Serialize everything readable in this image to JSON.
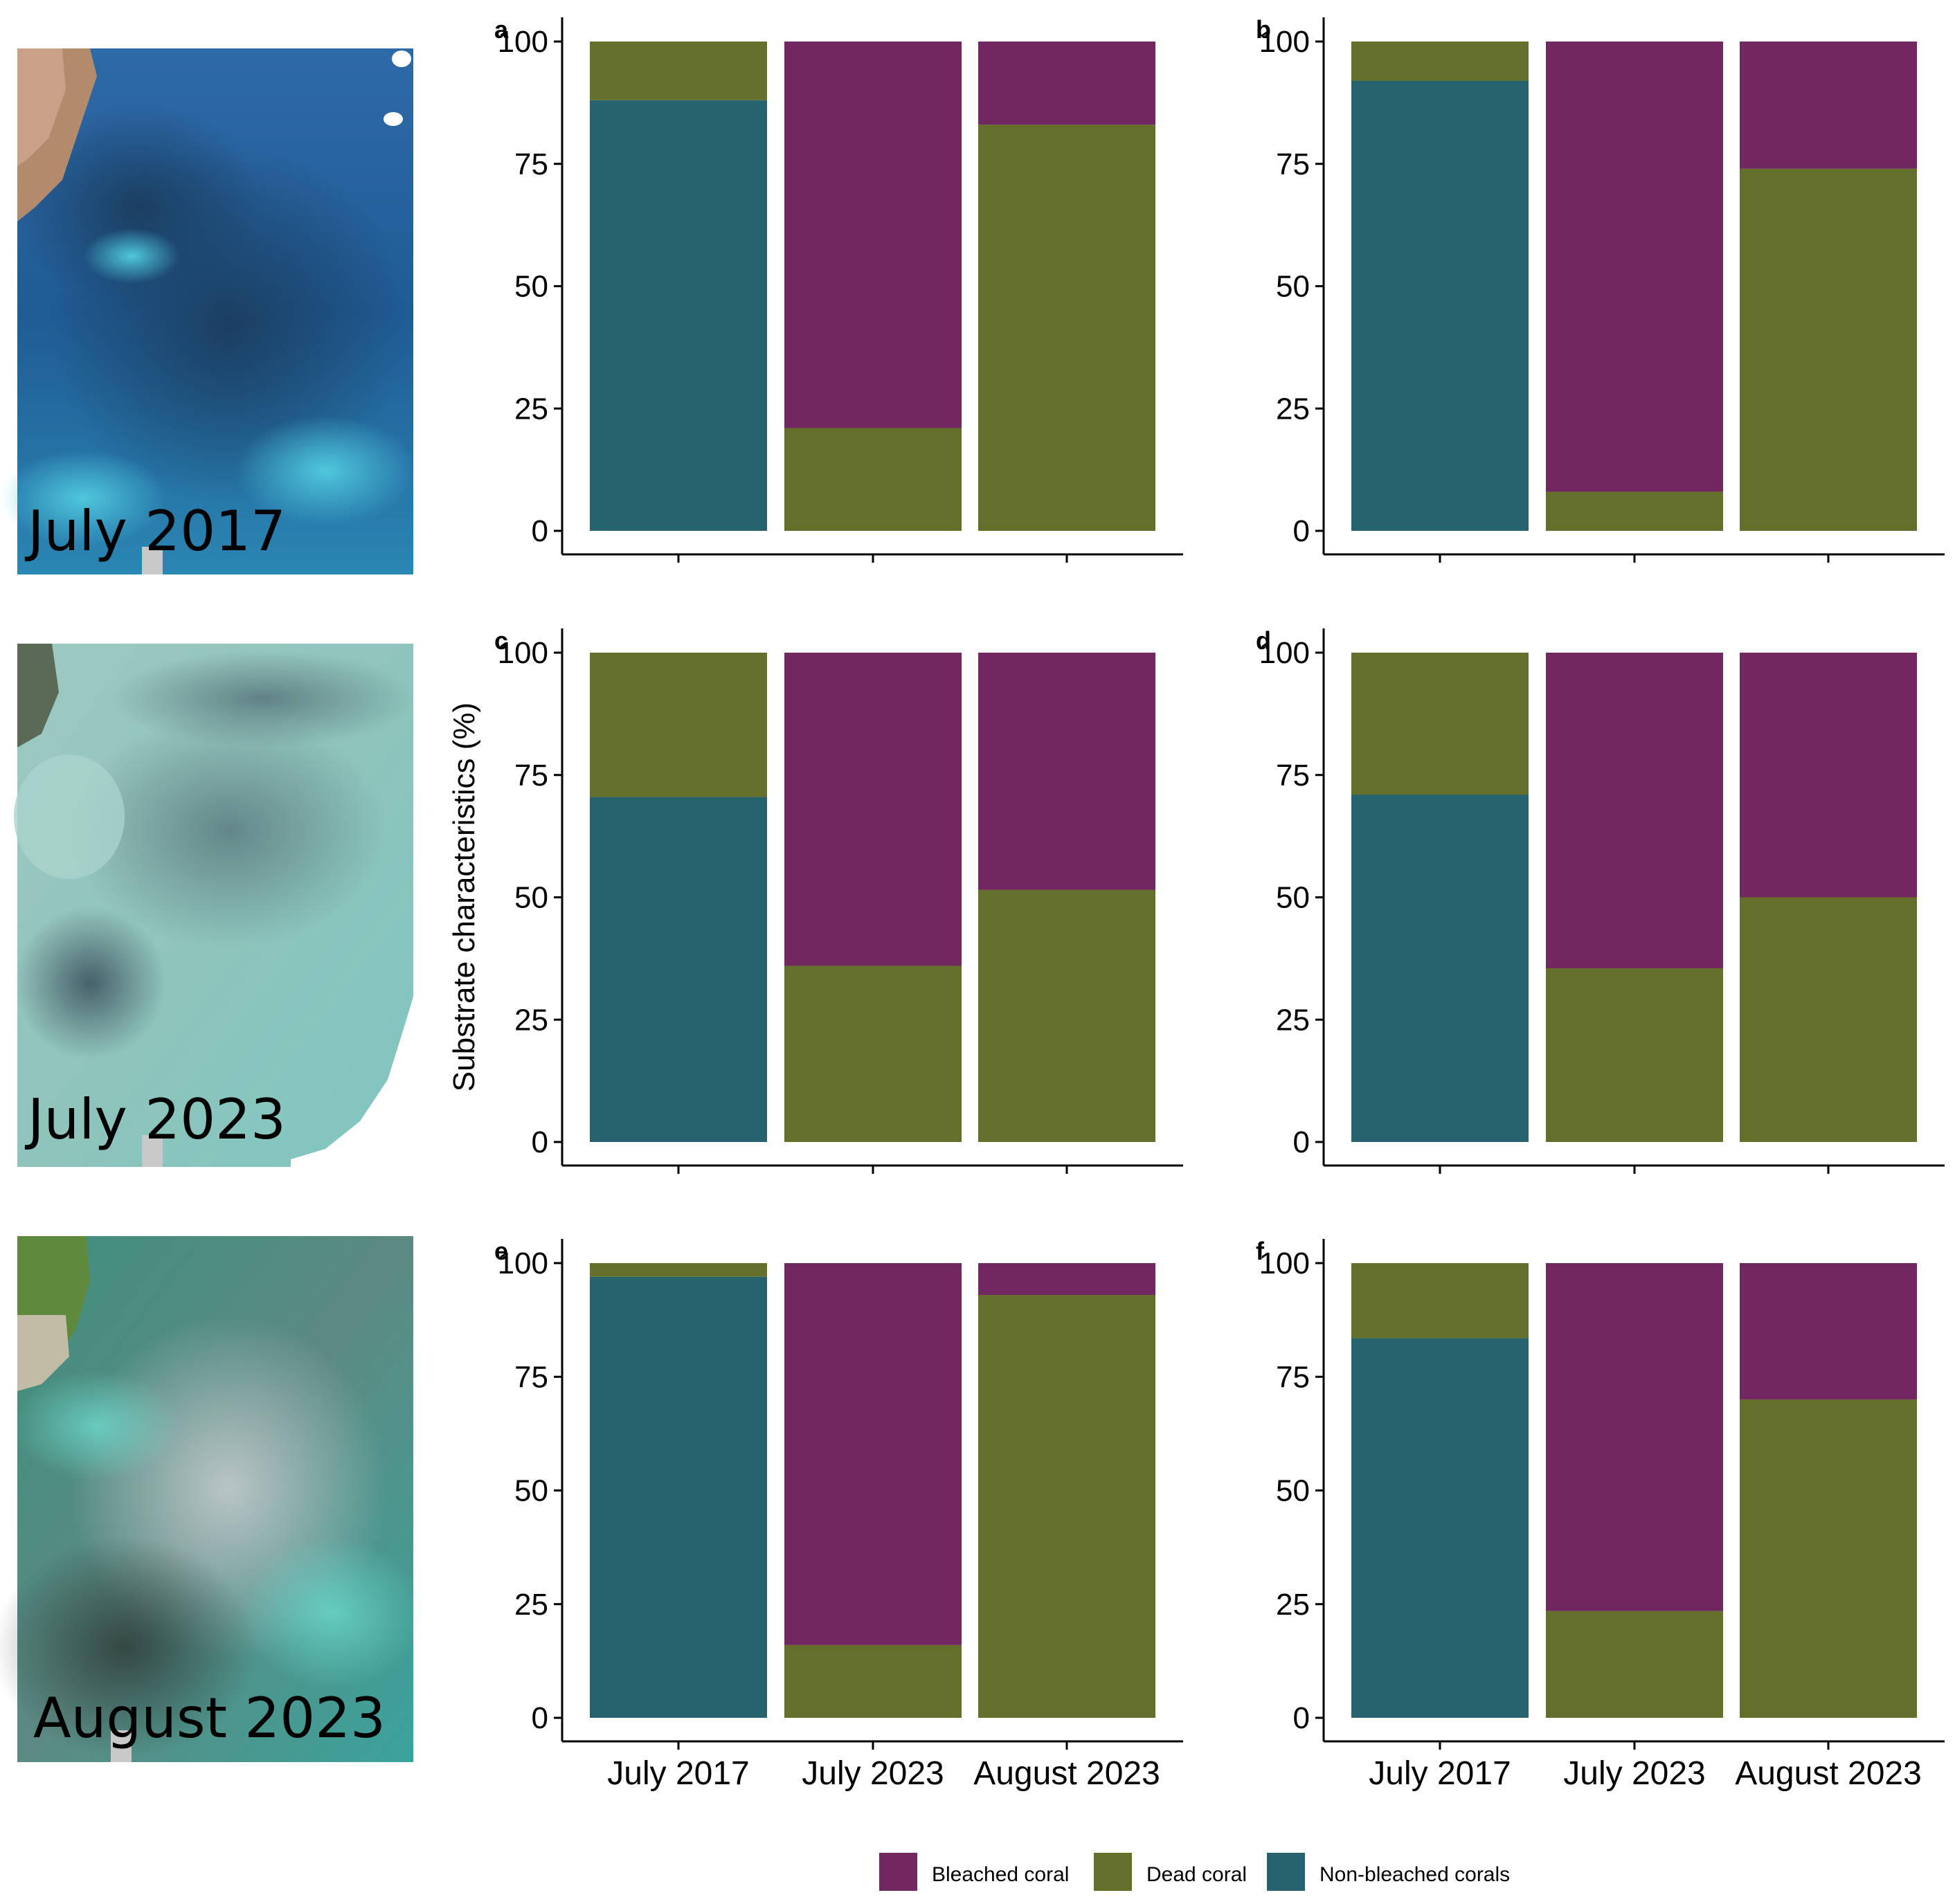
{
  "colors": {
    "bleached": "#71275f",
    "dead": "#647029",
    "non_bleached": "#27636f"
  },
  "photos": [
    {
      "label": "July 2017",
      "style": "blue"
    },
    {
      "label": "July 2023",
      "style": "pale"
    },
    {
      "label": "August 2023",
      "style": "hazy"
    }
  ],
  "shared": {
    "ylabel": "Substrate characteristics (%)",
    "categories": [
      "July 2017",
      "July 2023",
      "August 2023"
    ]
  },
  "legend": [
    {
      "key": "bleached",
      "label": "Bleached coral"
    },
    {
      "key": "dead",
      "label": "Dead coral"
    },
    {
      "key": "non_bleached",
      "label": "Non-bleached corals"
    }
  ],
  "chart_data": [
    {
      "panel": "a",
      "type": "bar",
      "stacked": true,
      "categories": [
        "July 2017",
        "July 2023",
        "August 2023"
      ],
      "ylim": [
        0,
        100
      ],
      "yticks": [
        0,
        25,
        50,
        75,
        100
      ],
      "series": [
        {
          "name": "Non-bleached corals",
          "key": "non_bleached",
          "values": [
            88,
            0,
            0
          ]
        },
        {
          "name": "Dead coral",
          "key": "dead",
          "values": [
            12,
            21,
            83
          ]
        },
        {
          "name": "Bleached coral",
          "key": "bleached",
          "values": [
            0,
            79,
            17
          ]
        }
      ]
    },
    {
      "panel": "b",
      "type": "bar",
      "stacked": true,
      "categories": [
        "July 2017",
        "July 2023",
        "August 2023"
      ],
      "ylim": [
        0,
        100
      ],
      "yticks": [
        0,
        25,
        50,
        75,
        100
      ],
      "series": [
        {
          "name": "Non-bleached corals",
          "key": "non_bleached",
          "values": [
            92,
            0,
            0
          ]
        },
        {
          "name": "Dead coral",
          "key": "dead",
          "values": [
            8,
            8,
            74
          ]
        },
        {
          "name": "Bleached coral",
          "key": "bleached",
          "values": [
            0,
            92,
            26
          ]
        }
      ]
    },
    {
      "panel": "c",
      "type": "bar",
      "stacked": true,
      "categories": [
        "July 2017",
        "July 2023",
        "August 2023"
      ],
      "ylim": [
        0,
        100
      ],
      "yticks": [
        0,
        25,
        50,
        75,
        100
      ],
      "series": [
        {
          "name": "Non-bleached corals",
          "key": "non_bleached",
          "values": [
            70.5,
            0,
            0
          ]
        },
        {
          "name": "Dead coral",
          "key": "dead",
          "values": [
            29.5,
            36,
            51.5
          ]
        },
        {
          "name": "Bleached coral",
          "key": "bleached",
          "values": [
            0,
            64,
            48.5
          ]
        }
      ]
    },
    {
      "panel": "d",
      "type": "bar",
      "stacked": true,
      "categories": [
        "July 2017",
        "July 2023",
        "August 2023"
      ],
      "ylim": [
        0,
        100
      ],
      "yticks": [
        0,
        25,
        50,
        75,
        100
      ],
      "series": [
        {
          "name": "Non-bleached corals",
          "key": "non_bleached",
          "values": [
            71,
            0,
            0
          ]
        },
        {
          "name": "Dead coral",
          "key": "dead",
          "values": [
            29,
            35.5,
            50
          ]
        },
        {
          "name": "Bleached coral",
          "key": "bleached",
          "values": [
            0,
            64.5,
            50
          ]
        }
      ]
    },
    {
      "panel": "e",
      "type": "bar",
      "stacked": true,
      "categories": [
        "July 2017",
        "July 2023",
        "August 2023"
      ],
      "ylim": [
        0,
        100
      ],
      "yticks": [
        0,
        25,
        50,
        75,
        100
      ],
      "series": [
        {
          "name": "Non-bleached corals",
          "key": "non_bleached",
          "values": [
            97,
            0,
            0
          ]
        },
        {
          "name": "Dead coral",
          "key": "dead",
          "values": [
            3,
            16,
            93
          ]
        },
        {
          "name": "Bleached coral",
          "key": "bleached",
          "values": [
            0,
            84,
            7
          ]
        }
      ]
    },
    {
      "panel": "f",
      "type": "bar",
      "stacked": true,
      "categories": [
        "July 2017",
        "July 2023",
        "August 2023"
      ],
      "ylim": [
        0,
        100
      ],
      "yticks": [
        0,
        25,
        50,
        75,
        100
      ],
      "series": [
        {
          "name": "Non-bleached corals",
          "key": "non_bleached",
          "values": [
            83.5,
            0,
            0
          ]
        },
        {
          "name": "Dead coral",
          "key": "dead",
          "values": [
            16.5,
            23.5,
            70
          ]
        },
        {
          "name": "Bleached coral",
          "key": "bleached",
          "values": [
            0,
            76.5,
            30
          ]
        }
      ]
    }
  ]
}
